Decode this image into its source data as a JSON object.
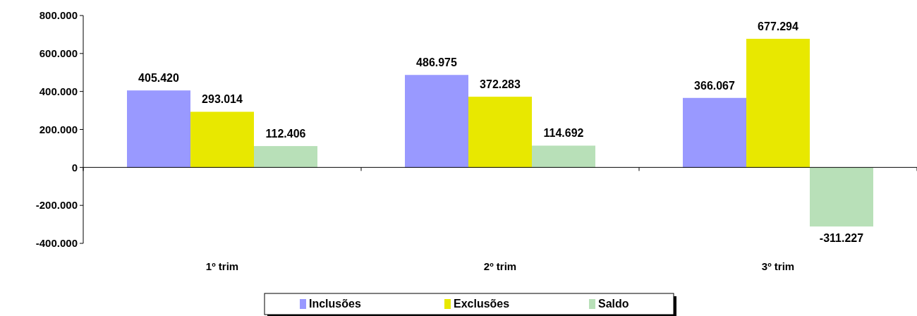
{
  "chart_data": {
    "type": "bar",
    "categories": [
      "1º trim",
      "2º trim",
      "3º trim"
    ],
    "series": [
      {
        "name": "Inclusões",
        "color": "#9999ff",
        "values": [
          405420,
          486975,
          366067
        ],
        "value_labels": [
          "405.420",
          "486.975",
          "366.067"
        ]
      },
      {
        "name": "Exclusões",
        "color": "#e8e800",
        "values": [
          293014,
          372283,
          677294
        ],
        "value_labels": [
          "293.014",
          "372.283",
          "677.294"
        ]
      },
      {
        "name": "Saldo",
        "color": "#b8e0b8",
        "values": [
          112406,
          114692,
          -311227
        ],
        "value_labels": [
          "112.406",
          "114.692",
          "-311.227"
        ]
      }
    ],
    "ylim": [
      -400000,
      800000
    ],
    "yticks": [
      {
        "value": -400000,
        "label": "-400.000"
      },
      {
        "value": -200000,
        "label": "-200.000"
      },
      {
        "value": 0,
        "label": "0"
      },
      {
        "value": 200000,
        "label": "200.000"
      },
      {
        "value": 400000,
        "label": "400.000"
      },
      {
        "value": 600000,
        "label": "600.000"
      },
      {
        "value": 800000,
        "label": "800.000"
      }
    ],
    "legend": "bottom"
  }
}
